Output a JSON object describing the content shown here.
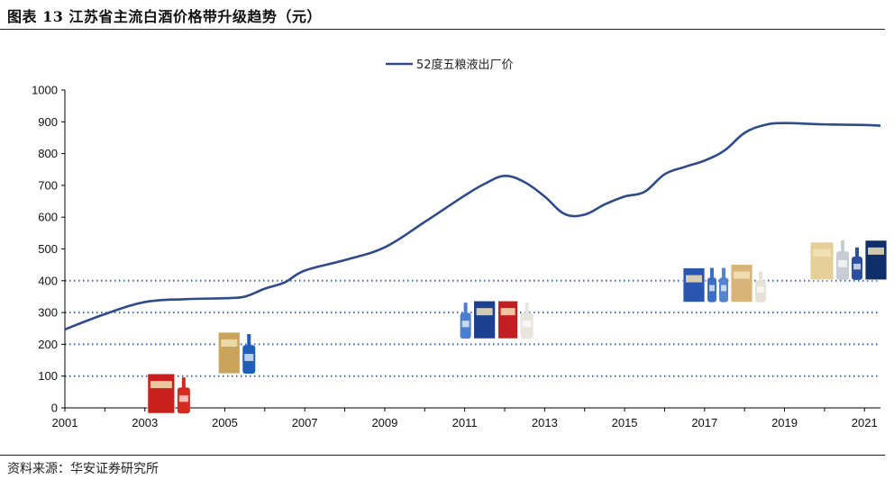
{
  "figure": {
    "title": "图表 13 江苏省主流白酒价格带升级趋势（元）",
    "source": "资料来源：华安证券研究所"
  },
  "chart_data": {
    "type": "line",
    "title": "",
    "xlabel": "",
    "ylabel": "",
    "xlim": [
      2001,
      2021.4
    ],
    "ylim": [
      0,
      1000
    ],
    "x_ticks": [
      "2001",
      "2003",
      "2005",
      "2007",
      "2009",
      "2011",
      "2013",
      "2015",
      "2017",
      "2019",
      "2021"
    ],
    "y_ticks": [
      "0",
      "100",
      "200",
      "300",
      "400",
      "500",
      "600",
      "700",
      "800",
      "900",
      "1000"
    ],
    "reference_lines": [
      100,
      200,
      300,
      400
    ],
    "legend": {
      "position": "top-center"
    },
    "series": [
      {
        "name": "52度五粮液出厂价",
        "color": "#2F4B8A",
        "x": [
          2001,
          2002,
          2003,
          2004,
          2005,
          2005.5,
          2006,
          2006.5,
          2007,
          2008,
          2009,
          2010,
          2011,
          2011.5,
          2012,
          2012.5,
          2013,
          2013.5,
          2014,
          2014.5,
          2015,
          2015.5,
          2016,
          2016.5,
          2017,
          2017.5,
          2018,
          2018.5,
          2019,
          2020,
          2021,
          2021.4
        ],
        "y": [
          247,
          295,
          333,
          342,
          345,
          350,
          375,
          395,
          432,
          465,
          505,
          585,
          668,
          705,
          730,
          710,
          665,
          610,
          608,
          640,
          665,
          680,
          735,
          758,
          778,
          810,
          865,
          890,
          896,
          892,
          890,
          888
        ]
      }
    ],
    "annotations": [
      {
        "type": "product-image",
        "label": "",
        "x": 2003.6,
        "y": 45
      },
      {
        "type": "product-image",
        "label": "",
        "x": 2005.3,
        "y": 170
      },
      {
        "type": "product-image",
        "label": "",
        "x": 2011.8,
        "y": 280
      },
      {
        "type": "product-image",
        "label": "",
        "x": 2017.5,
        "y": 395
      },
      {
        "type": "product-image",
        "label": "",
        "x": 2020.6,
        "y": 465
      }
    ]
  }
}
